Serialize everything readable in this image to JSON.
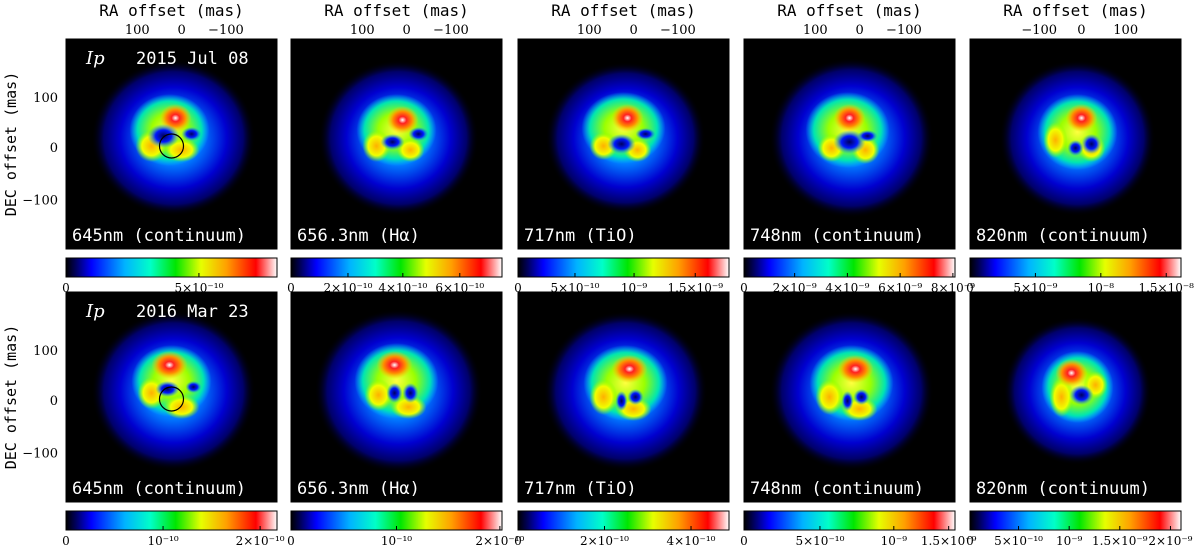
{
  "figure": {
    "top_axis_label": "RA offset (mas)",
    "left_axis_label": "DEC offset (mas)",
    "top_ticks_a": [
      "100",
      "0",
      "−100"
    ],
    "top_ticks_b": [
      "−100",
      "0",
      "100"
    ],
    "left_ticks": [
      "100",
      "0",
      "−100"
    ],
    "band": "Ip",
    "rows": [
      {
        "epoch": "2015 Jul 08"
      },
      {
        "epoch": "2016 Mar 23"
      }
    ],
    "panels": [
      {
        "label": "645nm (continuum)"
      },
      {
        "label": "656.3nm (Hα)"
      },
      {
        "label": "717nm (TiO)"
      },
      {
        "label": "748nm (continuum)"
      },
      {
        "label": "820nm (continuum)"
      }
    ],
    "colorbars": [
      [
        {
          "ticks": [
            {
              "t": "0",
              "f": 0.0
            },
            {
              "t": "5×10⁻¹⁰",
              "f": 0.63
            }
          ]
        },
        {
          "ticks": [
            {
              "t": "0",
              "f": 0.0
            },
            {
              "t": "2×10⁻¹⁰",
              "f": 0.27
            },
            {
              "t": "4×10⁻¹⁰",
              "f": 0.53
            },
            {
              "t": "6×10⁻¹⁰",
              "f": 0.8
            }
          ]
        },
        {
          "ticks": [
            {
              "t": "0",
              "f": 0.0
            },
            {
              "t": "5×10⁻¹⁰",
              "f": 0.27
            },
            {
              "t": "10⁻⁹",
              "f": 0.55
            },
            {
              "t": "1.5×10⁻⁹",
              "f": 0.84
            }
          ]
        },
        {
          "ticks": [
            {
              "t": "0",
              "f": 0.0
            },
            {
              "t": "2×10⁻⁹",
              "f": 0.24
            },
            {
              "t": "4×10⁻⁹",
              "f": 0.49
            },
            {
              "t": "6×10⁻⁹",
              "f": 0.74
            },
            {
              "t": "8×10⁻⁹",
              "f": 0.99
            }
          ]
        },
        {
          "ticks": [
            {
              "t": "0",
              "f": 0.0
            },
            {
              "t": "5×10⁻⁹",
              "f": 0.31
            },
            {
              "t": "10⁻⁸",
              "f": 0.62
            },
            {
              "t": "1.5×10⁻⁸",
              "f": 0.93
            }
          ]
        }
      ],
      [
        {
          "ticks": [
            {
              "t": "0",
              "f": 0.0
            },
            {
              "t": "10⁻¹⁰",
              "f": 0.46
            },
            {
              "t": "2×10⁻¹⁰",
              "f": 0.92
            }
          ]
        },
        {
          "ticks": [
            {
              "t": "0",
              "f": 0.0
            },
            {
              "t": "10⁻¹⁰",
              "f": 0.5
            },
            {
              "t": "2×10⁻¹⁰",
              "f": 0.99
            }
          ]
        },
        {
          "ticks": [
            {
              "t": "0",
              "f": 0.0
            },
            {
              "t": "2×10⁻¹⁰",
              "f": 0.41
            },
            {
              "t": "4×10⁻¹⁰",
              "f": 0.82
            }
          ]
        },
        {
          "ticks": [
            {
              "t": "0",
              "f": 0.0
            },
            {
              "t": "5×10⁻¹⁰",
              "f": 0.36
            },
            {
              "t": "10⁻⁹",
              "f": 0.71
            },
            {
              "t": "1.5×10⁻⁹",
              "f": 0.97
            }
          ]
        },
        {
          "ticks": [
            {
              "t": "0",
              "f": 0.0
            },
            {
              "t": "5×10⁻¹⁰",
              "f": 0.23
            },
            {
              "t": "10⁻⁹",
              "f": 0.47
            },
            {
              "t": "1.5×10⁻⁹",
              "f": 0.71
            },
            {
              "t": "2×10⁻⁹",
              "f": 0.95
            }
          ]
        }
      ]
    ]
  }
}
